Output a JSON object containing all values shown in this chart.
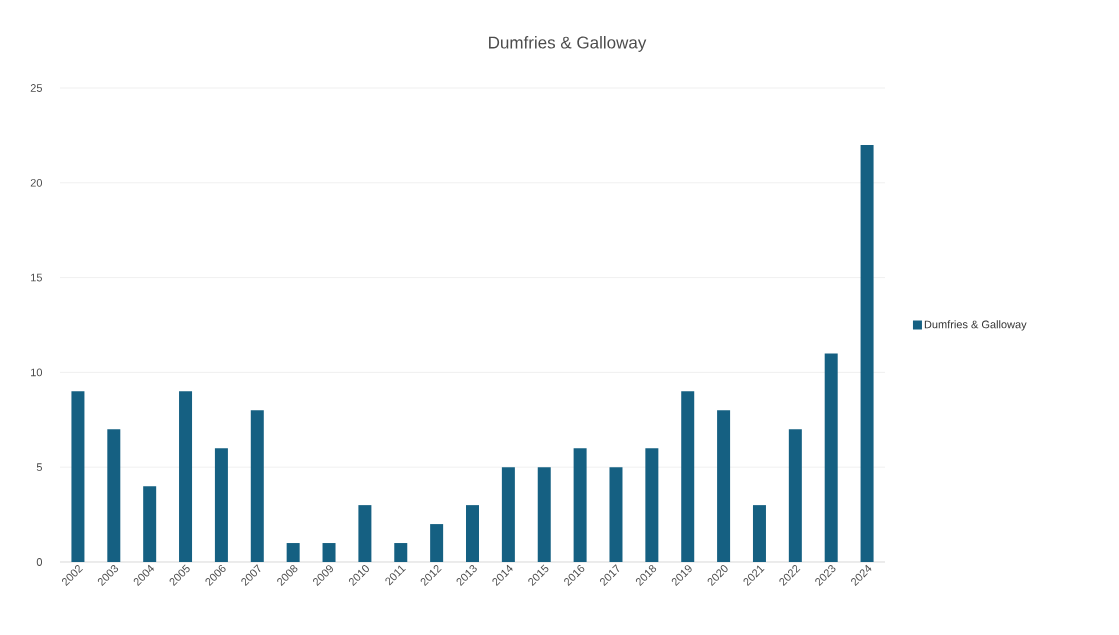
{
  "chart_data": {
    "type": "bar",
    "title": "Dumfries & Galloway",
    "categories": [
      "2002",
      "2003",
      "2004",
      "2005",
      "2006",
      "2007",
      "2008",
      "2009",
      "2010",
      "2011",
      "2012",
      "2013",
      "2014",
      "2015",
      "2016",
      "2017",
      "2018",
      "2019",
      "2020",
      "2021",
      "2022",
      "2023",
      "2024"
    ],
    "series": [
      {
        "name": "Dumfries & Galloway",
        "color": "#156082",
        "values": [
          9,
          7,
          4,
          9,
          6,
          8,
          1,
          1,
          3,
          1,
          2,
          3,
          5,
          5,
          6,
          5,
          6,
          9,
          8,
          3,
          7,
          11,
          22
        ]
      }
    ],
    "ylim": [
      0,
      25
    ],
    "yticks": [
      0,
      5,
      10,
      15,
      20,
      25
    ],
    "grid": "y",
    "legend": "right"
  }
}
